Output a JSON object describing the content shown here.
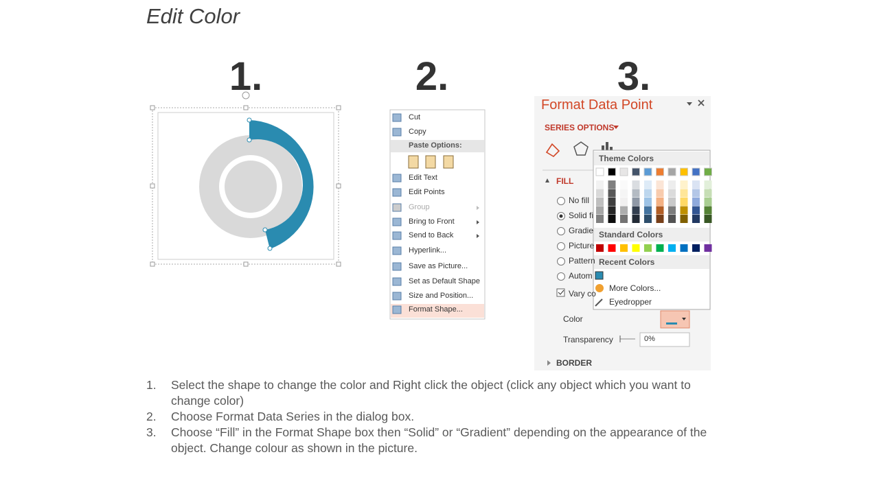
{
  "title": "Edit Color",
  "steps": [
    "1.",
    "2.",
    "3."
  ],
  "context_menu": {
    "items": [
      "Cut",
      "Copy",
      "Paste Options:",
      "Edit Text",
      "Edit Points",
      "Group",
      "Bring to Front",
      "Send to Back",
      "Hyperlink...",
      "Save as Picture...",
      "Set as Default Shape",
      "Size and Position...",
      "Format Shape..."
    ]
  },
  "format_pane": {
    "title": "Format Data Point",
    "series_options": "SERIES OPTIONS",
    "fill": "FILL",
    "fill_options": [
      "No fill",
      "Solid fi",
      "Gradie",
      "Picture",
      "Pattern",
      "Autom"
    ],
    "vary": "Vary co",
    "color_label": "Color",
    "transparency_label": "Transparency",
    "transparency_value": "0%",
    "border": "BORDER"
  },
  "color_picker": {
    "theme_heading": "Theme Colors",
    "standard_heading": "Standard Colors",
    "recent_heading": "Recent Colors",
    "more_colors": "More Colors...",
    "eyedropper": "Eyedropper",
    "theme_colors": [
      "#ffffff",
      "#000000",
      "#e7e6e6",
      "#44546a",
      "#5b9bd5",
      "#ed7d31",
      "#a5a5a5",
      "#ffc000",
      "#4472c4",
      "#70ad47"
    ],
    "standard_colors": [
      "#c00000",
      "#ff0000",
      "#ffc000",
      "#ffff00",
      "#92d050",
      "#00b050",
      "#00b0f0",
      "#0070c0",
      "#002060",
      "#7030a0"
    ],
    "recent_colors": [
      "#2a8bb0"
    ]
  },
  "instructions": [
    {
      "number": "1.",
      "text": "Select the shape to change the color and Right click the object (click any object which you want to change color)"
    },
    {
      "number": "2.",
      "text": "Choose Format Data Series in the dialog box."
    },
    {
      "number": "3.",
      "text": "Choose “Fill” in the Format Shape box then “Solid” or “Gradient” depending on the appearance of the object. Change colour as shown in the picture."
    }
  ]
}
